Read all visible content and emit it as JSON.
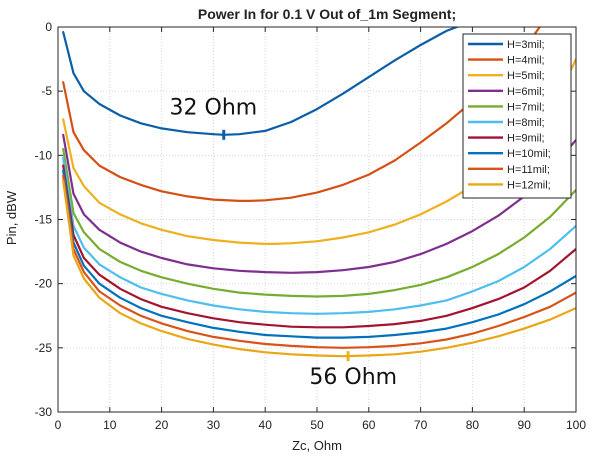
{
  "chart_data": {
    "type": "line",
    "title": "Power In for 0.1 V Out of_1m Segment;",
    "xlabel": "Zc, Ohm",
    "ylabel": "Pin, dBW",
    "xlim": [
      0,
      100
    ],
    "ylim": [
      -30,
      0
    ],
    "xticks": [
      0,
      10,
      20,
      30,
      40,
      50,
      60,
      70,
      80,
      90,
      100
    ],
    "yticks": [
      0,
      -5,
      -10,
      -15,
      -20,
      -25,
      -30
    ],
    "grid": "dotted",
    "legend_position": "top-right",
    "series": [
      {
        "name": "H=3mil;",
        "color": "#0b5fa9",
        "x": [
          1,
          3,
          5,
          8,
          12,
          16,
          20,
          25,
          30,
          32,
          35,
          40,
          45,
          50,
          55,
          60,
          65,
          70,
          75,
          77
        ],
        "y": [
          -0.4,
          -3.6,
          -5.0,
          -6.0,
          -6.9,
          -7.5,
          -7.9,
          -8.2,
          -8.35,
          -8.4,
          -8.35,
          -8.1,
          -7.4,
          -6.4,
          -5.2,
          -3.9,
          -2.6,
          -1.4,
          -0.3,
          0.0
        ]
      },
      {
        "name": "H=4mil;",
        "color": "#d45113",
        "x": [
          1,
          3,
          5,
          8,
          12,
          16,
          20,
          25,
          30,
          35,
          37,
          40,
          45,
          50,
          55,
          60,
          65,
          70,
          75,
          80,
          85,
          90,
          93
        ],
        "y": [
          -4.3,
          -8.2,
          -9.6,
          -10.8,
          -11.7,
          -12.3,
          -12.8,
          -13.2,
          -13.45,
          -13.55,
          -13.55,
          -13.5,
          -13.3,
          -12.9,
          -12.3,
          -11.5,
          -10.4,
          -9.0,
          -7.5,
          -5.8,
          -3.9,
          -1.7,
          0.0
        ]
      },
      {
        "name": "H=5mil;",
        "color": "#edb120",
        "x": [
          1,
          3,
          5,
          8,
          12,
          16,
          20,
          25,
          30,
          35,
          40,
          42,
          45,
          50,
          55,
          60,
          65,
          70,
          75,
          80,
          85,
          90,
          95,
          100
        ],
        "y": [
          -7.2,
          -11.0,
          -12.4,
          -13.7,
          -14.6,
          -15.3,
          -15.8,
          -16.3,
          -16.6,
          -16.8,
          -16.9,
          -16.9,
          -16.85,
          -16.7,
          -16.4,
          -16.0,
          -15.4,
          -14.6,
          -13.6,
          -12.4,
          -10.9,
          -8.9,
          -6.8,
          -2.5
        ]
      },
      {
        "name": "H=6mil;",
        "color": "#7e2f8e",
        "x": [
          1,
          3,
          5,
          8,
          12,
          16,
          20,
          25,
          30,
          35,
          40,
          45,
          50,
          55,
          60,
          65,
          70,
          75,
          80,
          85,
          90,
          95,
          100
        ],
        "y": [
          -8.4,
          -13.0,
          -14.6,
          -15.8,
          -16.8,
          -17.5,
          -18.0,
          -18.5,
          -18.8,
          -19.0,
          -19.1,
          -19.15,
          -19.1,
          -18.95,
          -18.7,
          -18.3,
          -17.7,
          -16.9,
          -15.9,
          -14.7,
          -13.2,
          -11.2,
          -8.8
        ]
      },
      {
        "name": "H=7mil;",
        "color": "#77ac30",
        "x": [
          1,
          3,
          5,
          8,
          12,
          16,
          20,
          25,
          30,
          35,
          40,
          45,
          50,
          55,
          60,
          65,
          70,
          75,
          80,
          85,
          90,
          95,
          100
        ],
        "y": [
          -9.5,
          -14.5,
          -16.0,
          -17.3,
          -18.3,
          -19.0,
          -19.5,
          -20.0,
          -20.4,
          -20.7,
          -20.85,
          -20.95,
          -21.0,
          -20.95,
          -20.8,
          -20.5,
          -20.1,
          -19.5,
          -18.7,
          -17.7,
          -16.4,
          -14.8,
          -12.7
        ]
      },
      {
        "name": "H=8mil;",
        "color": "#4dbeee",
        "x": [
          1,
          3,
          5,
          8,
          12,
          16,
          20,
          25,
          30,
          35,
          40,
          45,
          50,
          55,
          60,
          65,
          70,
          75,
          80,
          85,
          90,
          95,
          100
        ],
        "y": [
          -10.2,
          -15.5,
          -17.2,
          -18.5,
          -19.5,
          -20.3,
          -20.8,
          -21.3,
          -21.7,
          -22.0,
          -22.2,
          -22.3,
          -22.35,
          -22.3,
          -22.2,
          -22.0,
          -21.7,
          -21.3,
          -20.6,
          -19.8,
          -18.7,
          -17.3,
          -15.5
        ]
      },
      {
        "name": "H=9mil;",
        "color": "#a2142f",
        "x": [
          1,
          3,
          5,
          8,
          12,
          16,
          20,
          25,
          30,
          35,
          40,
          45,
          50,
          55,
          60,
          65,
          70,
          75,
          80,
          85,
          90,
          95,
          100
        ],
        "y": [
          -10.8,
          -16.2,
          -18.0,
          -19.3,
          -20.4,
          -21.2,
          -21.8,
          -22.3,
          -22.7,
          -23.0,
          -23.2,
          -23.35,
          -23.4,
          -23.4,
          -23.3,
          -23.15,
          -22.9,
          -22.5,
          -21.9,
          -21.2,
          -20.3,
          -19.0,
          -17.3
        ]
      },
      {
        "name": "H=10mil;",
        "color": "#0072bd",
        "x": [
          1,
          3,
          5,
          8,
          12,
          16,
          20,
          25,
          30,
          35,
          40,
          45,
          50,
          55,
          60,
          65,
          70,
          75,
          80,
          85,
          90,
          95,
          100
        ],
        "y": [
          -11.2,
          -16.8,
          -18.6,
          -20.0,
          -21.1,
          -21.9,
          -22.5,
          -23.0,
          -23.45,
          -23.75,
          -24.0,
          -24.1,
          -24.2,
          -24.2,
          -24.15,
          -24.0,
          -23.8,
          -23.5,
          -23.0,
          -22.4,
          -21.6,
          -20.6,
          -19.4
        ]
      },
      {
        "name": "H=11mil;",
        "color": "#d95319",
        "x": [
          1,
          3,
          5,
          8,
          12,
          16,
          20,
          25,
          30,
          35,
          40,
          45,
          50,
          55,
          60,
          65,
          70,
          75,
          80,
          85,
          90,
          95,
          100
        ],
        "y": [
          -11.6,
          -17.3,
          -19.1,
          -20.6,
          -21.7,
          -22.5,
          -23.1,
          -23.7,
          -24.15,
          -24.45,
          -24.7,
          -24.85,
          -24.95,
          -25.0,
          -24.95,
          -24.85,
          -24.65,
          -24.35,
          -23.9,
          -23.3,
          -22.6,
          -21.8,
          -20.7
        ]
      },
      {
        "name": "H=12mil;",
        "color": "#e9a616",
        "x": [
          1,
          3,
          5,
          8,
          12,
          16,
          20,
          25,
          30,
          35,
          40,
          45,
          50,
          55,
          60,
          65,
          70,
          75,
          80,
          85,
          90,
          95,
          100
        ],
        "y": [
          -12.0,
          -17.8,
          -19.6,
          -21.1,
          -22.3,
          -23.1,
          -23.7,
          -24.3,
          -24.75,
          -25.1,
          -25.35,
          -25.5,
          -25.6,
          -25.65,
          -25.6,
          -25.5,
          -25.3,
          -25.0,
          -24.6,
          -24.1,
          -23.5,
          -22.8,
          -21.9
        ]
      }
    ],
    "annotations": [
      {
        "text": "32 Ohm",
        "x": 30,
        "y": -6.8,
        "marker": {
          "x": 32,
          "y": -8.4,
          "color": "#0b5fa9"
        }
      },
      {
        "text": "56 Ohm",
        "x": 57,
        "y": -27.8,
        "marker": {
          "x": 56,
          "y": -25.65,
          "color": "#edb120"
        }
      }
    ]
  }
}
